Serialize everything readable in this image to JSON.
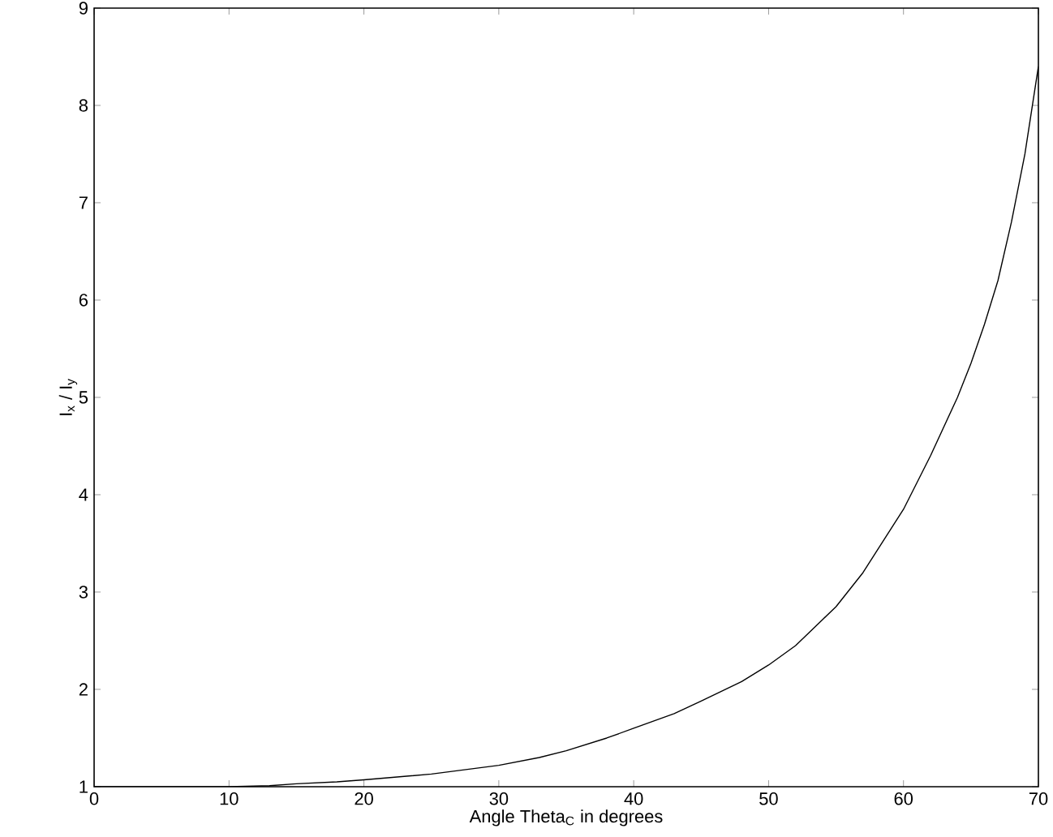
{
  "chart_data": {
    "type": "line",
    "xlabel": "Angle Theta$_{C}$ in degrees",
    "ylabel": "I$_{x}$ / I$_{y}$",
    "x": [
      0,
      5,
      10,
      13,
      15,
      18,
      20,
      25,
      30,
      33,
      35,
      38,
      40,
      43,
      45,
      48,
      50,
      52,
      55,
      57,
      60,
      62,
      64,
      65,
      66,
      67,
      68,
      69,
      70
    ],
    "series": [
      {
        "color": "#000000",
        "values": [
          1,
          1,
          1,
          1.01,
          1.03,
          1.05,
          1.07,
          1.13,
          1.22,
          1.3,
          1.37,
          1.5,
          1.6,
          1.75,
          1.88,
          2.08,
          2.25,
          2.45,
          2.85,
          3.2,
          3.85,
          4.4,
          5.0,
          5.35,
          5.75,
          6.2,
          6.8,
          7.5,
          8.4
        ]
      }
    ],
    "xlim": [
      0,
      70
    ],
    "ylim": [
      1,
      9
    ],
    "xticks": [
      0,
      10,
      20,
      30,
      40,
      50,
      60,
      70
    ],
    "yticks": [
      1,
      2,
      3,
      4,
      5,
      6,
      7,
      8,
      9
    ],
    "line_style": "solid",
    "marker": "none"
  }
}
